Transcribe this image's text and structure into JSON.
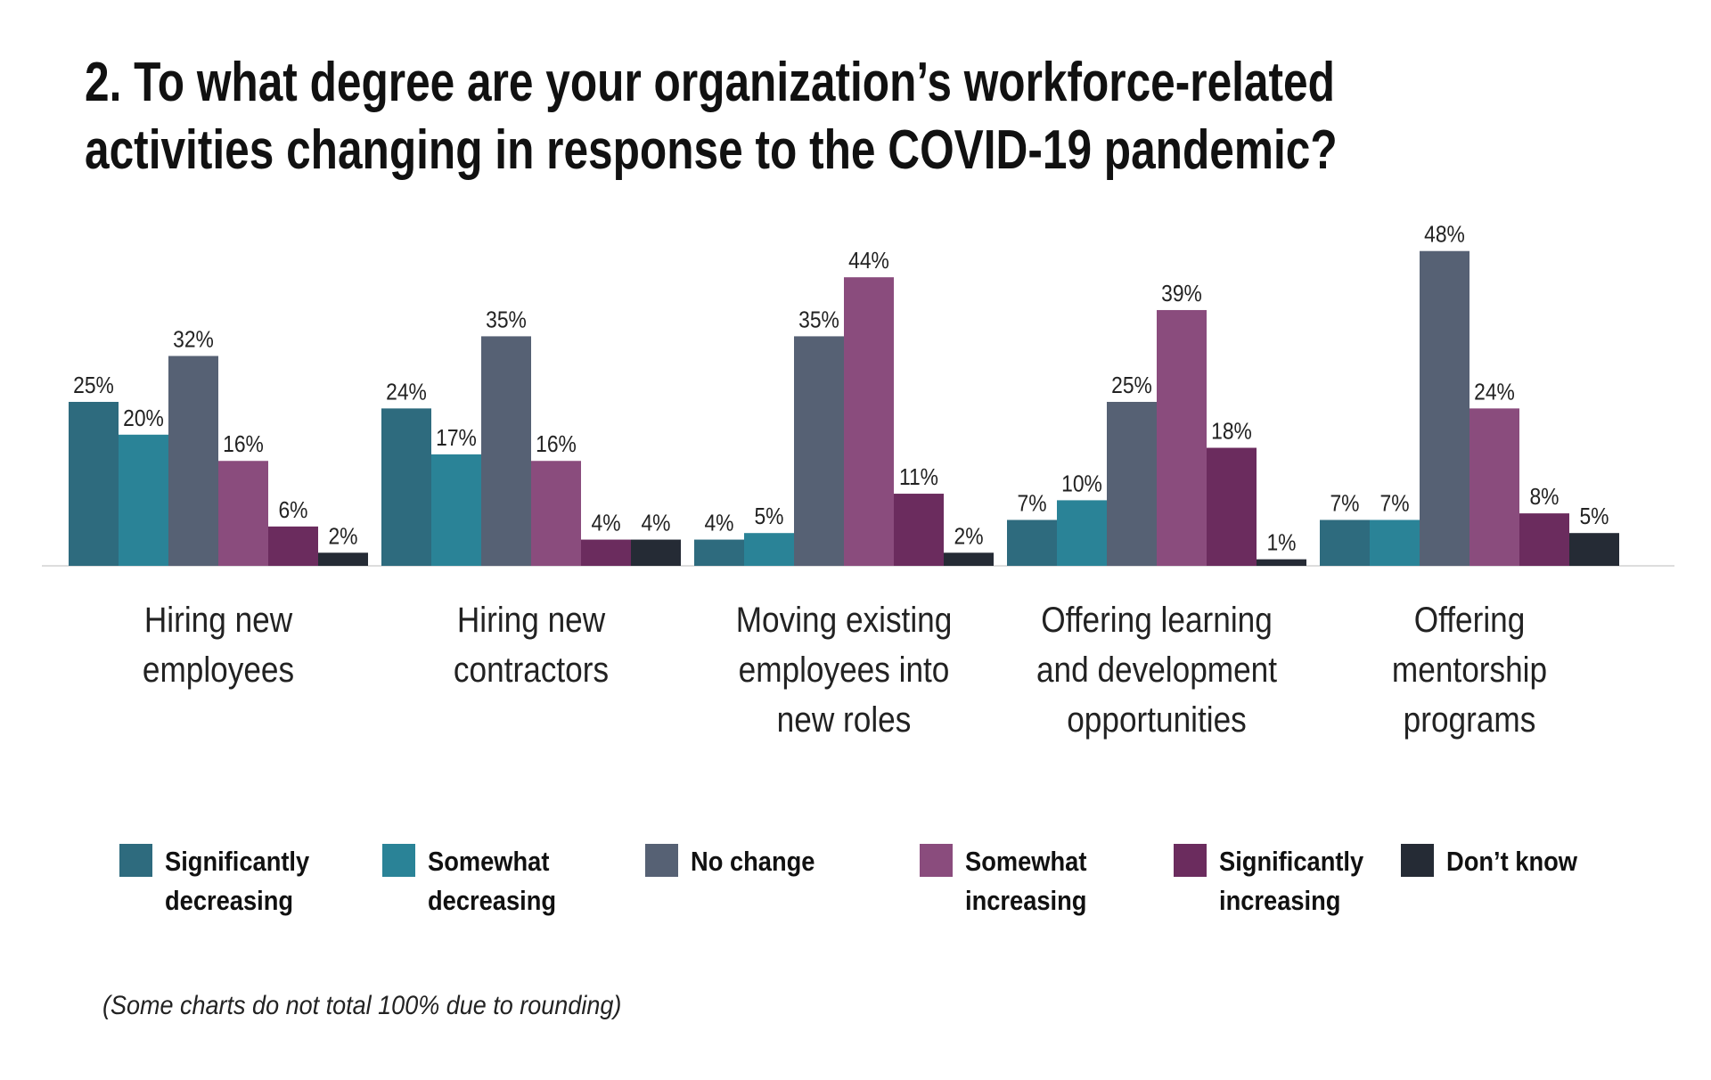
{
  "chart_data": {
    "type": "bar",
    "title": "2. To what degree are your organization’s workforce-related activities changing in response to the COVID-19 pandemic?",
    "categories": [
      "Hiring new employees",
      "Hiring new contractors",
      "Moving existing employees into new roles",
      "Offering learning and development opportunities",
      "Offering mentorship programs"
    ],
    "series": [
      {
        "name": "Significantly decreasing",
        "color": "#2e6b7e",
        "values": [
          25,
          24,
          4,
          7,
          7
        ],
        "value_labels": [
          "25%",
          "24%",
          "4%",
          "7%",
          "7%"
        ]
      },
      {
        "name": "Somewhat decreasing",
        "color": "#2a8397",
        "values": [
          20,
          17,
          5,
          10,
          7
        ],
        "value_labels": [
          "20%",
          "17%",
          "5%",
          "10%",
          "7%"
        ]
      },
      {
        "name": "No change",
        "color": "#566174",
        "values": [
          32,
          35,
          35,
          25,
          48
        ],
        "value_labels": [
          "32%",
          "35%",
          "35%",
          "25%",
          "48%"
        ]
      },
      {
        "name": "Somewhat increasing",
        "color": "#8a4c7d",
        "values": [
          16,
          16,
          44,
          39,
          24
        ],
        "value_labels": [
          "16%",
          "16%",
          "44%",
          "39%",
          "24%"
        ]
      },
      {
        "name": "Significantly increasing",
        "color": "#6b2c5e",
        "values": [
          6,
          4,
          11,
          18,
          8
        ],
        "value_labels": [
          "6%",
          "4%",
          "11%",
          "18%",
          "8%"
        ]
      },
      {
        "name": "Don’t know",
        "color": "#252b35",
        "values": [
          2,
          4,
          2,
          1,
          5
        ],
        "value_labels": [
          "2%",
          "4%",
          "2%",
          "1%",
          "5%"
        ]
      }
    ],
    "note": "(Some charts do not total 100% due to rounding)"
  }
}
